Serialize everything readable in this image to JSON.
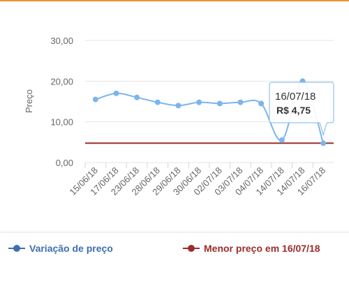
{
  "chart_data": {
    "type": "line",
    "y_label": "Preço",
    "categories": [
      "15/06/18",
      "17/06/18",
      "23/06/18",
      "28/06/18",
      "29/06/18",
      "30/06/18",
      "02/07/18",
      "03/07/18",
      "04/07/18",
      "14/07/18",
      "14/07/18",
      "16/07/18"
    ],
    "series": [
      {
        "name": "Variação de preço",
        "color": "#7cb5ec",
        "legend_color": "#3d6fae",
        "values": [
          15.5,
          17,
          16,
          14.8,
          14,
          14.8,
          14.5,
          14.8,
          14.5,
          5.5,
          20,
          4.75
        ]
      },
      {
        "name": "Menor preço em 16/07/18",
        "color": "#9b2d2d",
        "legend_color": "#9b2d2d",
        "value": 4.75
      }
    ],
    "ylim": [
      0,
      30
    ],
    "yticks": [
      {
        "value": 0,
        "label": "0,00"
      },
      {
        "value": 10,
        "label": "10,00"
      },
      {
        "value": 20,
        "label": "20,00"
      },
      {
        "value": 30,
        "label": "30,00"
      }
    ],
    "grid": true,
    "tooltip": {
      "title": "16/07/18",
      "text": "R$ 4,75"
    }
  }
}
